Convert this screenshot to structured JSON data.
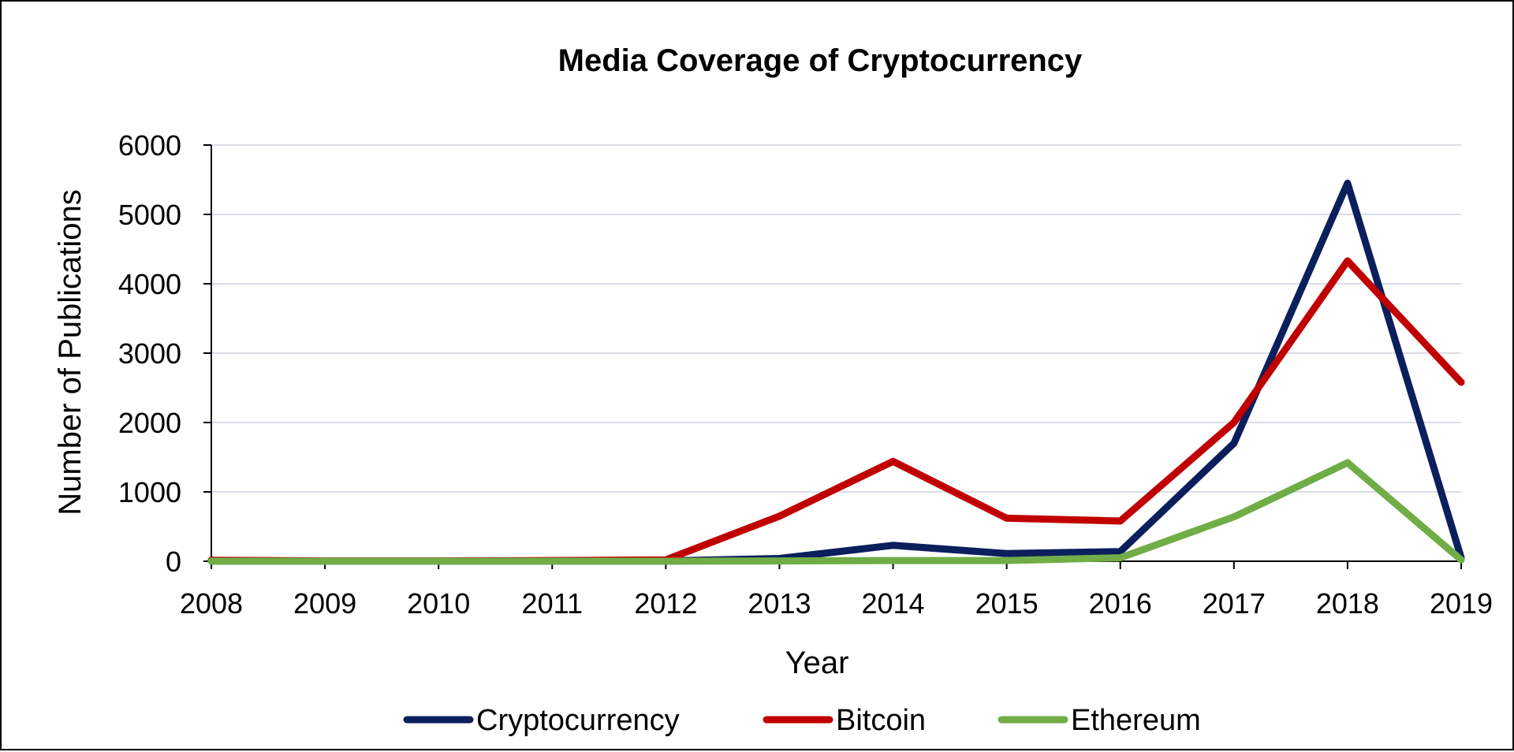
{
  "chart_data": {
    "type": "line",
    "title": "Media Coverage of Cryptocurrency",
    "xlabel": "Year",
    "ylabel": "Number of Publications",
    "x": [
      "2008",
      "2009",
      "2010",
      "2011",
      "2012",
      "2013",
      "2014",
      "2015",
      "2016",
      "2017",
      "2018",
      "2019"
    ],
    "ylim": [
      0,
      6000
    ],
    "yticks": [
      0,
      1000,
      2000,
      3000,
      4000,
      5000,
      6000
    ],
    "grid": true,
    "legend_position": "bottom",
    "series": [
      {
        "name": "Cryptocurrency",
        "color": "#0a1f5c",
        "values": [
          0,
          0,
          0,
          0,
          5,
          40,
          230,
          110,
          140,
          1700,
          5450,
          50
        ]
      },
      {
        "name": "Bitcoin",
        "color": "#c00000",
        "values": [
          15,
          5,
          5,
          10,
          20,
          650,
          1440,
          620,
          580,
          2000,
          4330,
          2580
        ]
      },
      {
        "name": "Ethereum",
        "color": "#70ad47",
        "values": [
          0,
          0,
          0,
          0,
          0,
          5,
          10,
          10,
          50,
          640,
          1420,
          20
        ]
      }
    ]
  }
}
